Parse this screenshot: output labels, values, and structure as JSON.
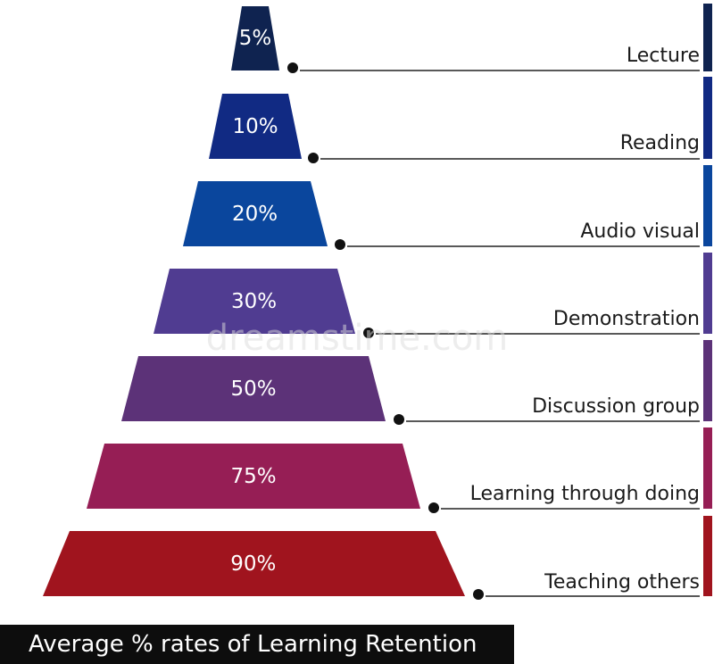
{
  "levels": [
    {
      "percent": "5%",
      "label": "Lecture",
      "value": 5,
      "color": "#0f2350"
    },
    {
      "percent": "10%",
      "label": "Reading",
      "value": 10,
      "color": "#112a83"
    },
    {
      "percent": "20%",
      "label": "Audio visual",
      "value": 20,
      "color": "#0a469d"
    },
    {
      "percent": "30%",
      "label": "Demonstration",
      "value": 30,
      "color": "#503c91"
    },
    {
      "percent": "50%",
      "label": "Discussion group",
      "value": 50,
      "color": "#5c3278"
    },
    {
      "percent": "75%",
      "label": "Learning through doing",
      "value": 75,
      "color": "#961e55"
    },
    {
      "percent": "90%",
      "label": "Teaching others",
      "value": 90,
      "color": "#a0141e"
    }
  ],
  "caption": "Average % rates of Learning Retention",
  "watermark": {
    "text": "dreamstime.com",
    "color": "#dcdcdc"
  },
  "line_color": "#222222",
  "dot_color": "#111111"
}
